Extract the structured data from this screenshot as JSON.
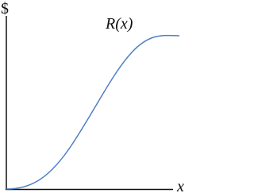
{
  "axes": {
    "y_label": "$",
    "x_label": "x"
  },
  "curve": {
    "label": "R(x)"
  }
}
